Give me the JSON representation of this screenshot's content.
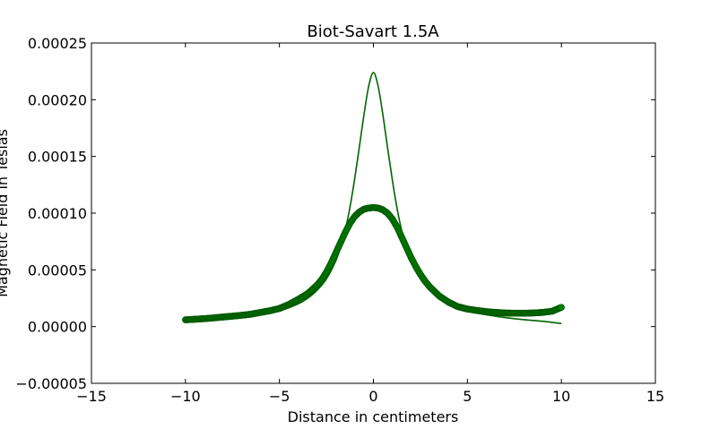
{
  "chart_data": {
    "type": "line",
    "title": "Biot-Savart 1.5A",
    "xlabel": "Distance in centimeters",
    "ylabel": "Magnetic Field in Teslas",
    "xlim": [
      -15,
      15
    ],
    "ylim": [
      -5e-05,
      0.00025
    ],
    "xticks": [
      -15,
      -10,
      -5,
      0,
      5,
      10,
      15
    ],
    "xtick_labels": [
      "−15",
      "−10",
      "−5",
      "0",
      "5",
      "10",
      "15"
    ],
    "yticks": [
      -5e-05,
      0,
      5e-05,
      0.0001,
      0.00015,
      0.0002,
      0.00025
    ],
    "ytick_labels": [
      "−0.00005",
      "0.00000",
      "0.00005",
      "0.00010",
      "0.00015",
      "0.00020",
      "0.00025"
    ],
    "grid": false,
    "series": [
      {
        "style": "line",
        "color": "#006400",
        "x": [
          -10,
          -9,
          -8,
          -7,
          -6,
          -5,
          -4,
          -3.5,
          -3,
          -2.5,
          -2,
          -1.75,
          -1.5,
          -1.25,
          -1,
          -0.75,
          -0.5,
          -0.25,
          0,
          0.25,
          0.5,
          0.75,
          1,
          1.25,
          1.5,
          1.75,
          2,
          2.5,
          3,
          3.5,
          4,
          5,
          6,
          7,
          8,
          9,
          10
        ],
        "y": [
          3.6e-06,
          4.7e-06,
          6.1e-06,
          8e-06,
          1.04e-05,
          1.38e-05,
          2e-05,
          2.5e-05,
          3.2e-05,
          4.2e-05,
          5.8e-05,
          7e-05,
          8.5e-05,
          0.000105,
          0.00013,
          0.000158,
          0.000187,
          0.000212,
          0.000224,
          0.000212,
          0.000187,
          0.000158,
          0.00013,
          0.000105,
          8.5e-05,
          7e-05,
          5.8e-05,
          4.2e-05,
          3.2e-05,
          2.5e-05,
          2e-05,
          1.38e-05,
          1.04e-05,
          8e-06,
          6.1e-06,
          4.7e-06,
          2.7e-06
        ]
      },
      {
        "style": "markers",
        "color": "#008000",
        "x": [
          -10,
          -9.5,
          -9,
          -8.5,
          -8,
          -7.5,
          -7,
          -6.5,
          -6,
          -5.5,
          -5,
          -4.5,
          -4,
          -3.5,
          -3,
          -2.75,
          -2.5,
          -2.25,
          -2,
          -1.75,
          -1.5,
          -1.25,
          -1,
          -0.75,
          -0.5,
          -0.25,
          0,
          0.25,
          0.5,
          0.75,
          1,
          1.25,
          1.5,
          1.75,
          2,
          2.25,
          2.5,
          2.75,
          3,
          3.5,
          4,
          4.5,
          5,
          5.5,
          6,
          6.5,
          7,
          7.5,
          8,
          8.5,
          9,
          9.5,
          10
        ],
        "y": [
          6e-06,
          6.5e-06,
          7e-06,
          7.7e-06,
          8.5e-06,
          9.2e-06,
          1e-05,
          1.1e-05,
          1.25e-05,
          1.4e-05,
          1.6e-05,
          1.95e-05,
          2.4e-05,
          2.9e-05,
          3.65e-05,
          4.15e-05,
          4.8e-05,
          5.6e-05,
          6.5e-05,
          7.4e-05,
          8.3e-05,
          9.1e-05,
          9.7e-05,
          0.000101,
          0.0001035,
          0.0001045,
          0.000105,
          0.0001045,
          0.000103,
          0.0001,
          9.5e-05,
          8.8e-05,
          7.9e-05,
          7e-05,
          6.1e-05,
          5.3e-05,
          4.6e-05,
          4e-05,
          3.5e-05,
          2.7e-05,
          2.15e-05,
          1.75e-05,
          1.55e-05,
          1.42e-05,
          1.32e-05,
          1.25e-05,
          1.2e-05,
          1.18e-05,
          1.18e-05,
          1.2e-05,
          1.25e-05,
          1.35e-05,
          1.7e-05
        ]
      }
    ]
  }
}
